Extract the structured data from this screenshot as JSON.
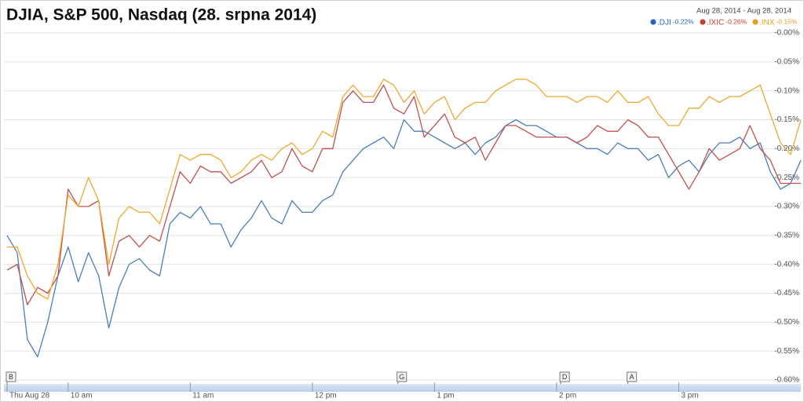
{
  "chart_data": {
    "type": "line",
    "title": "DJIA, S&P 500, Nasdaq (28. srpna 2014)",
    "date_range": "Aug 28, 2014  -  Aug 28, 2014",
    "x": [
      570,
      575,
      580,
      585,
      590,
      595,
      600,
      605,
      610,
      615,
      620,
      625,
      630,
      635,
      640,
      645,
      650,
      655,
      660,
      665,
      670,
      675,
      680,
      685,
      690,
      695,
      700,
      705,
      710,
      715,
      720,
      725,
      730,
      735,
      740,
      745,
      750,
      755,
      760,
      765,
      770,
      775,
      780,
      785,
      790,
      795,
      800,
      805,
      810,
      815,
      820,
      825,
      830,
      835,
      840,
      845,
      850,
      855,
      860,
      865,
      870,
      875,
      880,
      885,
      890,
      895,
      900,
      905,
      910,
      915,
      920,
      925,
      930,
      935,
      940,
      945,
      950,
      955,
      960
    ],
    "xlim": [
      570,
      960
    ],
    "xticks": [
      {
        "value": 570,
        "label": "Thu Aug 28"
      },
      {
        "value": 600,
        "label": "10 am"
      },
      {
        "value": 660,
        "label": "11 am"
      },
      {
        "value": 720,
        "label": "12 pm"
      },
      {
        "value": 780,
        "label": "1 pm"
      },
      {
        "value": 840,
        "label": "2 pm"
      },
      {
        "value": 900,
        "label": "3 pm"
      }
    ],
    "ylim": [
      -0.6,
      0
    ],
    "yticks": [
      {
        "value": 0,
        "label": "-0.00%"
      },
      {
        "value": -0.05,
        "label": "-0.05%"
      },
      {
        "value": -0.1,
        "label": "-0.10%"
      },
      {
        "value": -0.15,
        "label": "-0.15%"
      },
      {
        "value": -0.2,
        "label": "-0.20%"
      },
      {
        "value": -0.25,
        "label": "-0.25%"
      },
      {
        "value": -0.3,
        "label": "-0.30%"
      },
      {
        "value": -0.35,
        "label": "-0.35%"
      },
      {
        "value": -0.4,
        "label": "-0.40%"
      },
      {
        "value": -0.45,
        "label": "-0.45%"
      },
      {
        "value": -0.5,
        "label": "-0.50%"
      },
      {
        "value": -0.55,
        "label": "-0.55%"
      },
      {
        "value": -0.6,
        "label": "-0.60%"
      }
    ],
    "grid": true,
    "series": [
      {
        "name": ".DJI",
        "change_label": "-0.22%",
        "color": "#4a7ebb",
        "legend_color": "#2a64b4",
        "values": [
          -0.35,
          -0.38,
          -0.53,
          -0.56,
          -0.5,
          -0.42,
          -0.37,
          -0.43,
          -0.38,
          -0.42,
          -0.51,
          -0.44,
          -0.4,
          -0.39,
          -0.41,
          -0.42,
          -0.33,
          -0.31,
          -0.32,
          -0.3,
          -0.33,
          -0.33,
          -0.37,
          -0.34,
          -0.32,
          -0.29,
          -0.32,
          -0.33,
          -0.29,
          -0.31,
          -0.31,
          -0.29,
          -0.28,
          -0.24,
          -0.22,
          -0.2,
          -0.19,
          -0.18,
          -0.2,
          -0.15,
          -0.17,
          -0.17,
          -0.18,
          -0.19,
          -0.2,
          -0.19,
          -0.21,
          -0.19,
          -0.18,
          -0.16,
          -0.15,
          -0.16,
          -0.16,
          -0.17,
          -0.18,
          -0.18,
          -0.19,
          -0.2,
          -0.2,
          -0.21,
          -0.19,
          -0.2,
          -0.2,
          -0.22,
          -0.21,
          -0.25,
          -0.23,
          -0.22,
          -0.24,
          -0.21,
          -0.19,
          -0.19,
          -0.18,
          -0.2,
          -0.19,
          -0.24,
          -0.27,
          -0.26,
          -0.22
        ]
      },
      {
        "name": ".IXIC",
        "change_label": "-0.26%",
        "color": "#c0504d",
        "legend_color": "#c8402a",
        "values": [
          -0.41,
          -0.4,
          -0.47,
          -0.44,
          -0.45,
          -0.42,
          -0.27,
          -0.3,
          -0.3,
          -0.29,
          -0.42,
          -0.36,
          -0.35,
          -0.37,
          -0.35,
          -0.36,
          -0.3,
          -0.24,
          -0.26,
          -0.23,
          -0.24,
          -0.24,
          -0.26,
          -0.25,
          -0.24,
          -0.22,
          -0.25,
          -0.24,
          -0.2,
          -0.23,
          -0.24,
          -0.2,
          -0.2,
          -0.12,
          -0.1,
          -0.12,
          -0.12,
          -0.09,
          -0.13,
          -0.14,
          -0.11,
          -0.18,
          -0.16,
          -0.14,
          -0.18,
          -0.19,
          -0.18,
          -0.22,
          -0.19,
          -0.16,
          -0.16,
          -0.17,
          -0.18,
          -0.18,
          -0.18,
          -0.18,
          -0.19,
          -0.18,
          -0.16,
          -0.17,
          -0.17,
          -0.15,
          -0.16,
          -0.18,
          -0.18,
          -0.21,
          -0.24,
          -0.27,
          -0.24,
          -0.2,
          -0.22,
          -0.21,
          -0.2,
          -0.16,
          -0.2,
          -0.22,
          -0.26,
          -0.26,
          -0.26
        ]
      },
      {
        "name": ".INX",
        "change_label": "-0.15%",
        "color": "#f0a830",
        "legend_color": "#e8a020",
        "values": [
          -0.37,
          -0.37,
          -0.42,
          -0.45,
          -0.46,
          -0.4,
          -0.28,
          -0.3,
          -0.25,
          -0.29,
          -0.4,
          -0.32,
          -0.3,
          -0.31,
          -0.31,
          -0.33,
          -0.27,
          -0.21,
          -0.22,
          -0.21,
          -0.21,
          -0.22,
          -0.25,
          -0.24,
          -0.22,
          -0.21,
          -0.22,
          -0.2,
          -0.19,
          -0.21,
          -0.2,
          -0.17,
          -0.18,
          -0.11,
          -0.09,
          -0.11,
          -0.11,
          -0.08,
          -0.09,
          -0.12,
          -0.1,
          -0.14,
          -0.12,
          -0.11,
          -0.15,
          -0.13,
          -0.12,
          -0.12,
          -0.1,
          -0.09,
          -0.08,
          -0.08,
          -0.09,
          -0.11,
          -0.11,
          -0.11,
          -0.12,
          -0.11,
          -0.11,
          -0.12,
          -0.1,
          -0.12,
          -0.12,
          -0.11,
          -0.14,
          -0.16,
          -0.16,
          -0.13,
          -0.13,
          -0.11,
          -0.12,
          -0.11,
          -0.11,
          -0.1,
          -0.09,
          -0.14,
          -0.19,
          -0.21,
          -0.15
        ]
      }
    ],
    "annotations": [
      {
        "label": "B",
        "x": 570
      },
      {
        "label": "G",
        "x": 762
      },
      {
        "label": "D",
        "x": 842
      },
      {
        "label": "A",
        "x": 875
      }
    ]
  }
}
